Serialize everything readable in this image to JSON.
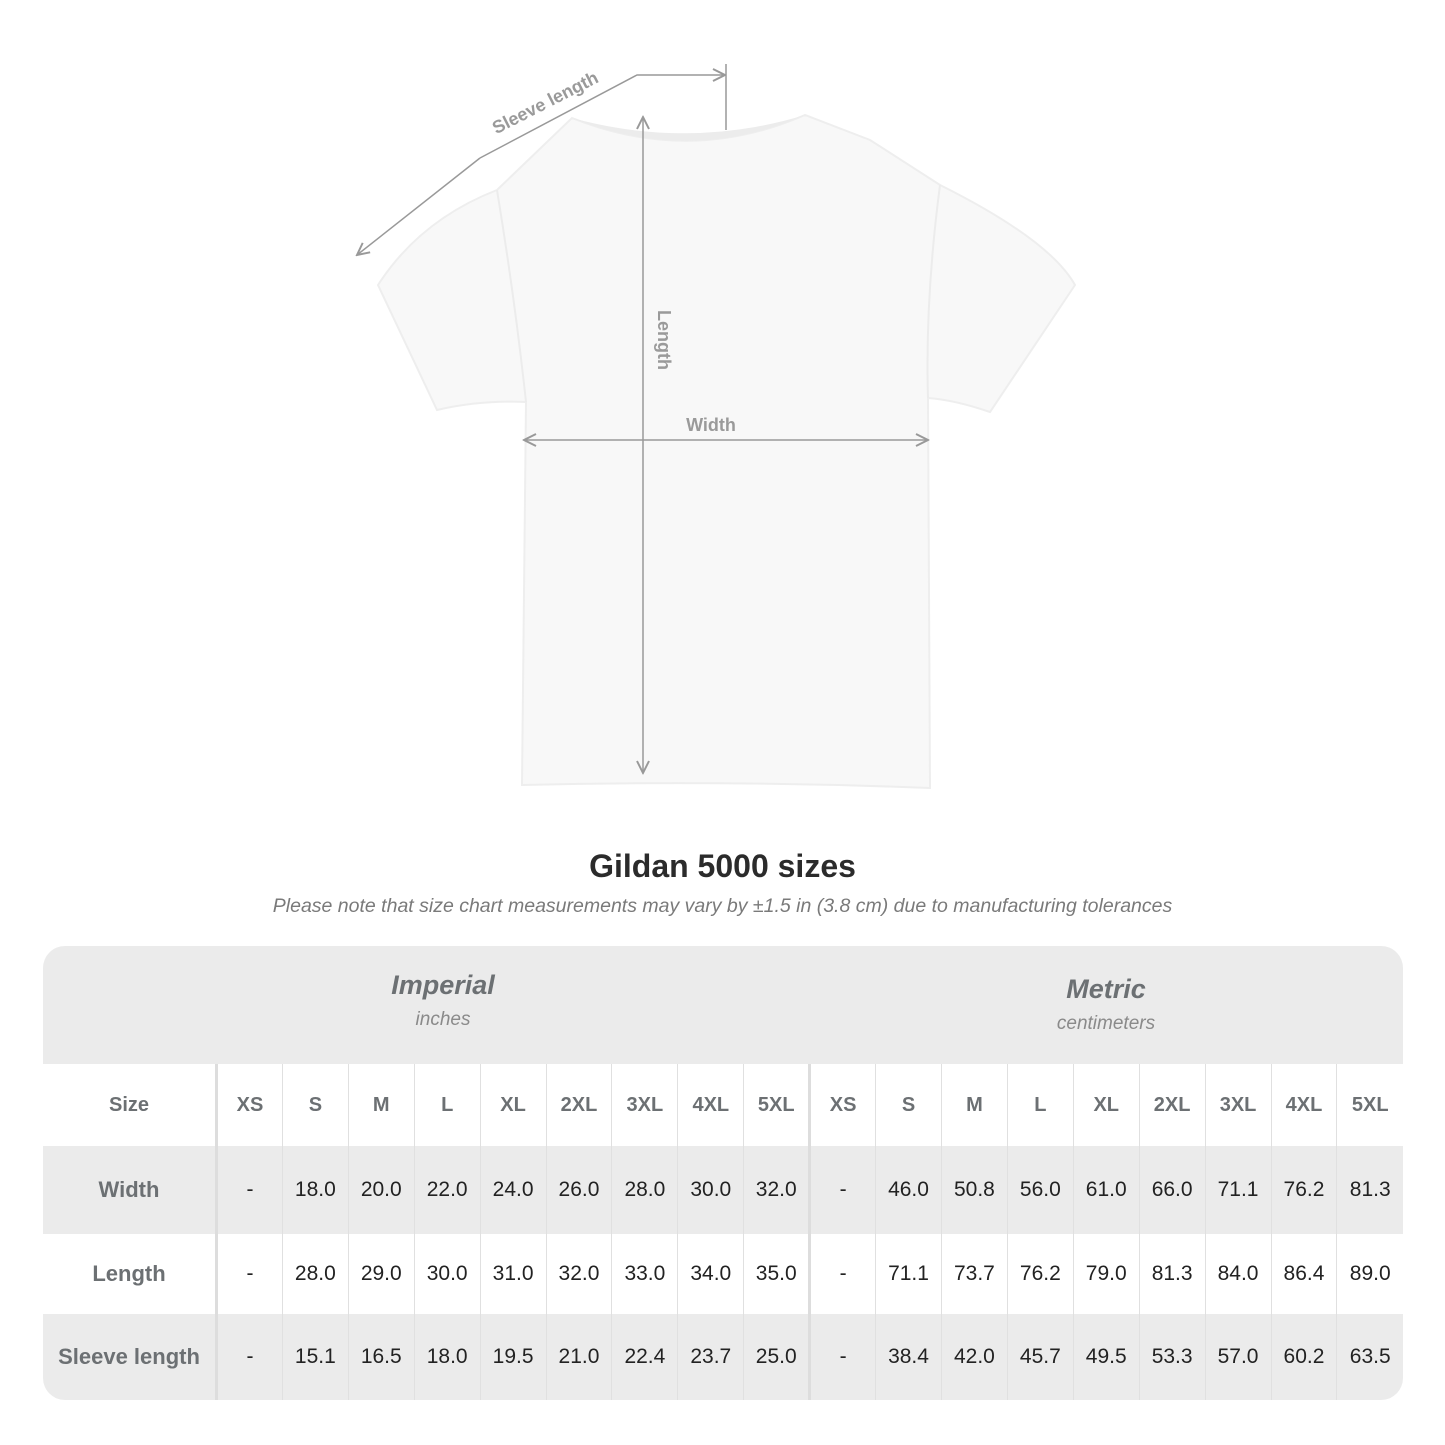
{
  "diagram": {
    "sleeve_label": "Sleeve length",
    "length_label": "Length",
    "width_label": "Width",
    "line_color": "#999999"
  },
  "title": "Gildan 5000 sizes",
  "subtitle": "Please note that size chart measurements may vary by ±1.5 in (3.8 cm) due to manufacturing tolerances",
  "table": {
    "imperial": {
      "name": "Imperial",
      "unit": "inches"
    },
    "metric": {
      "name": "Metric",
      "unit": "centimeters"
    },
    "size_label": "Size",
    "sizes": [
      "XS",
      "S",
      "M",
      "L",
      "XL",
      "2XL",
      "3XL",
      "4XL",
      "5XL"
    ],
    "rows": [
      {
        "label": "Width",
        "imperial": [
          "-",
          "18.0",
          "20.0",
          "22.0",
          "24.0",
          "26.0",
          "28.0",
          "30.0",
          "32.0"
        ],
        "metric": [
          "-",
          "46.0",
          "50.8",
          "56.0",
          "61.0",
          "66.0",
          "71.1",
          "76.2",
          "81.3"
        ]
      },
      {
        "label": "Length",
        "imperial": [
          "-",
          "28.0",
          "29.0",
          "30.0",
          "31.0",
          "32.0",
          "33.0",
          "34.0",
          "35.0"
        ],
        "metric": [
          "-",
          "71.1",
          "73.7",
          "76.2",
          "79.0",
          "81.3",
          "84.0",
          "86.4",
          "89.0"
        ]
      },
      {
        "label": "Sleeve length",
        "imperial": [
          "-",
          "15.1",
          "16.5",
          "18.0",
          "19.5",
          "21.0",
          "22.4",
          "23.7",
          "25.0"
        ],
        "metric": [
          "-",
          "38.4",
          "42.0",
          "45.7",
          "49.5",
          "53.3",
          "57.0",
          "60.2",
          "63.5"
        ]
      }
    ]
  }
}
